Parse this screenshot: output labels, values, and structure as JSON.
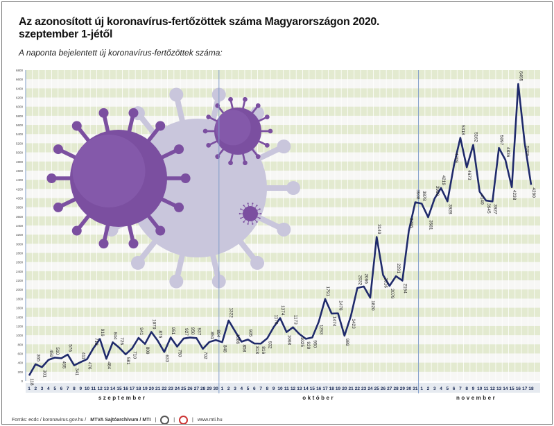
{
  "header": {
    "title": "Az azonosított új koronavírus-fertőzöttek száma Magyarországon 2020. szeptember 1-jétől",
    "subtitle": "A naponta bejelentett új koronavírus-fertőzöttek száma:"
  },
  "footer": {
    "source": "Forrás: ecdc / koronavirus.gov.hu /",
    "agency": "MTVA Sajtóarchívum / MTI",
    "site": "www.mti.hu"
  },
  "colors": {
    "line": "#1f2a6b",
    "stripe": "#e3ead0",
    "virus": "#7b4fa0",
    "ghost": "#c9c6dc",
    "divider": "#7f9cc8"
  },
  "chart_data": {
    "type": "line",
    "title": "Az azonosított új koronavírus-fertőzöttek száma Magyarországon 2020. szeptember 1-jétől",
    "ylabel": "A naponta bejelentett új koronavírus-fertőzöttek száma",
    "ylim": [
      0,
      6800
    ],
    "ytick_step": 200,
    "grid": true,
    "months": [
      {
        "name": "szeptember",
        "days": 30
      },
      {
        "name": "október",
        "days": 31
      },
      {
        "name": "november",
        "days": 18
      }
    ],
    "values": [
      118,
      365,
      301,
      459,
      510,
      495,
      576,
      341,
      411,
      476,
      718,
      916,
      484,
      844,
      726,
      581,
      710,
      941,
      809,
      1070,
      876,
      633,
      951,
      750,
      927,
      950,
      937,
      702,
      851,
      894,
      848,
      1322,
      1086,
      858,
      905,
      818,
      816,
      932,
      1176,
      1374,
      1068,
      1173,
      1025,
      920,
      950,
      1293,
      1791,
      1474,
      1478,
      989,
      1423,
      2032,
      2066,
      1820,
      3149,
      2316,
      2079,
      2291,
      2194,
      3286,
      3908,
      3878,
      3581,
      3989,
      4219,
      3928,
      4709,
      5318,
      4673,
      5162,
      4140,
      3945,
      3927,
      5097,
      4836,
      4238,
      6495,
      5203,
      4290
    ]
  }
}
